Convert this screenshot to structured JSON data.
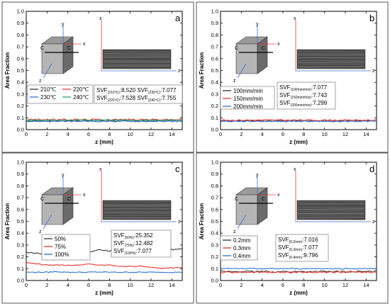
{
  "chart_data": [
    {
      "type": "line",
      "panel_label": "a",
      "xlabel": "z (mm)",
      "ylabel": "Area Fraction",
      "xlim": [
        0,
        15
      ],
      "ylim": [
        0.0,
        1.0
      ],
      "x_ticks": [
        "0",
        "2",
        "4",
        "6",
        "8",
        "10",
        "12",
        "14"
      ],
      "y_ticks": [
        "0.0",
        "0.1",
        "0.2",
        "0.3",
        "0.4",
        "0.5",
        "0.6",
        "0.7",
        "0.8",
        "0.9",
        "1.0"
      ],
      "legend_columns": 2,
      "series": [
        {
          "name": "210℃",
          "color": "#333333",
          "level": 0.075,
          "noise": 0.006
        },
        {
          "name": "220℃",
          "color": "#e8352e",
          "level": 0.085,
          "noise": 0.006
        },
        {
          "name": "230℃",
          "color": "#2a6fd6",
          "level": 0.07,
          "noise": 0.005
        },
        {
          "name": "240℃",
          "color": "#2aa36a",
          "level": 0.08,
          "noise": 0.006
        }
      ],
      "svf_lines": [
        [
          {
            "pre": "SVF",
            "sub": "(210℃)",
            "post": ":8.520 "
          },
          {
            "pre": "SVF",
            "sub": "(230℃)",
            "post": ":7.077"
          }
        ],
        [
          {
            "pre": "SVF",
            "sub": "(220℃)",
            "post": ":7.528 "
          },
          {
            "pre": "SVF",
            "sub": "(240℃)",
            "post": ":7.755"
          }
        ]
      ]
    },
    {
      "type": "line",
      "panel_label": "b",
      "xlabel": "z (mm)",
      "ylabel": "Area Fraction",
      "xlim": [
        0,
        15
      ],
      "ylim": [
        0.0,
        1.0
      ],
      "x_ticks": [
        "0",
        "2",
        "4",
        "6",
        "8",
        "10",
        "12",
        "14"
      ],
      "y_ticks": [
        "0.0",
        "0.1",
        "0.2",
        "0.3",
        "0.4",
        "0.5",
        "0.6",
        "0.7",
        "0.8",
        "0.9",
        "1.0"
      ],
      "legend_columns": 1,
      "series": [
        {
          "name": "100mm/min",
          "color": "#333333",
          "level": 0.075,
          "noise": 0.005
        },
        {
          "name": "150mm/min",
          "color": "#e8352e",
          "level": 0.08,
          "noise": 0.006
        },
        {
          "name": "200mm/min",
          "color": "#2a6fd6",
          "level": 0.07,
          "noise": 0.005
        }
      ],
      "svf_lines": [
        [
          {
            "pre": "SVF",
            "sub": "(100mm/min)",
            "post": ":7.077"
          }
        ],
        [
          {
            "pre": "SVF",
            "sub": "(150mm/min)",
            "post": ":7.743"
          }
        ],
        [
          {
            "pre": "SVF",
            "sub": "(200mm/min)",
            "post": ":7.299"
          }
        ]
      ]
    },
    {
      "type": "line",
      "panel_label": "c",
      "xlabel": "z (mm)",
      "ylabel": "Area Fraction",
      "xlim": [
        0,
        15
      ],
      "ylim": [
        0.0,
        1.0
      ],
      "x_ticks": [
        "0",
        "2",
        "4",
        "6",
        "8",
        "10",
        "12",
        "14"
      ],
      "y_ticks": [
        "0.0",
        "0.1",
        "0.2",
        "0.3",
        "0.4",
        "0.5",
        "0.6",
        "0.7",
        "0.8",
        "0.9",
        "1.0"
      ],
      "legend_columns": 1,
      "series": [
        {
          "name": "50%",
          "color": "#333333",
          "points": [
            [
              0,
              0.24
            ],
            [
              1,
              0.23
            ],
            [
              2,
              0.22
            ],
            [
              3,
              0.24
            ],
            [
              4,
              0.25
            ],
            [
              5,
              0.23
            ],
            [
              6,
              0.24
            ],
            [
              7,
              0.26
            ],
            [
              8,
              0.25
            ],
            [
              9,
              0.26
            ],
            [
              10,
              0.25
            ],
            [
              11,
              0.28
            ],
            [
              12,
              0.26
            ],
            [
              13,
              0.25
            ],
            [
              14,
              0.26
            ],
            [
              15,
              0.27
            ]
          ]
        },
        {
          "name": "75%",
          "color": "#e8352e",
          "points": [
            [
              0,
              0.15
            ],
            [
              1,
              0.14
            ],
            [
              2,
              0.13
            ],
            [
              3,
              0.13
            ],
            [
              4,
              0.13
            ],
            [
              5,
              0.13
            ],
            [
              6,
              0.14
            ],
            [
              7,
              0.13
            ],
            [
              8,
              0.13
            ],
            [
              9,
              0.12
            ],
            [
              10,
              0.12
            ],
            [
              11,
              0.12
            ],
            [
              12,
              0.11
            ],
            [
              13,
              0.1
            ],
            [
              14,
              0.11
            ],
            [
              15,
              0.11
            ]
          ]
        },
        {
          "name": "100%",
          "color": "#2a6fd6",
          "points": [
            [
              0,
              0.07
            ],
            [
              1,
              0.07
            ],
            [
              2,
              0.07
            ],
            [
              3,
              0.075
            ],
            [
              4,
              0.07
            ],
            [
              5,
              0.07
            ],
            [
              6,
              0.07
            ],
            [
              7,
              0.072
            ],
            [
              8,
              0.07
            ],
            [
              9,
              0.07
            ],
            [
              10,
              0.07
            ],
            [
              11,
              0.07
            ],
            [
              12,
              0.07
            ],
            [
              13,
              0.07
            ],
            [
              14,
              0.07
            ],
            [
              15,
              0.07
            ]
          ]
        }
      ],
      "svf_lines": [
        [
          {
            "pre": "SVF",
            "sub": "(50%)",
            "post": ":25.352"
          }
        ],
        [
          {
            "pre": "SVF",
            "sub": "(75%)",
            "post": ":12.482"
          }
        ],
        [
          {
            "pre": "SVF",
            "sub": "(100%)",
            "post": ":7.077"
          }
        ]
      ]
    },
    {
      "type": "line",
      "panel_label": "d",
      "xlabel": "z (mm)",
      "ylabel": "Area Fraction",
      "xlim": [
        0,
        15
      ],
      "ylim": [
        0.0,
        1.0
      ],
      "x_ticks": [
        "0",
        "2",
        "4",
        "6",
        "8",
        "10",
        "12",
        "14"
      ],
      "y_ticks": [
        "0.0",
        "0.1",
        "0.2",
        "0.3",
        "0.4",
        "0.5",
        "0.6",
        "0.7",
        "0.8",
        "0.9",
        "1.0"
      ],
      "legend_columns": 1,
      "series": [
        {
          "name": "0.2mm",
          "color": "#333333",
          "level": 0.075,
          "noise": 0.007
        },
        {
          "name": "0.3mm",
          "color": "#e8352e",
          "level": 0.07,
          "noise": 0.006
        },
        {
          "name": "0.4mm",
          "color": "#2a6fd6",
          "level": 0.1,
          "noise": 0.004
        }
      ],
      "svf_lines": [
        [
          {
            "pre": "SVF",
            "sub": "(0.2mm)",
            "post": ":7.016"
          }
        ],
        [
          {
            "pre": "SVF",
            "sub": "(0.3mm)",
            "post": ":7.077"
          }
        ],
        [
          {
            "pre": "SVF",
            "sub": "(0.4mm)",
            "post": ":9.796"
          }
        ]
      ]
    }
  ],
  "inset": {
    "cube_labels": [
      "C",
      "C"
    ],
    "cube_axes": [
      "y",
      "x",
      "z"
    ],
    "micro_axes": [
      "x",
      "z"
    ]
  }
}
